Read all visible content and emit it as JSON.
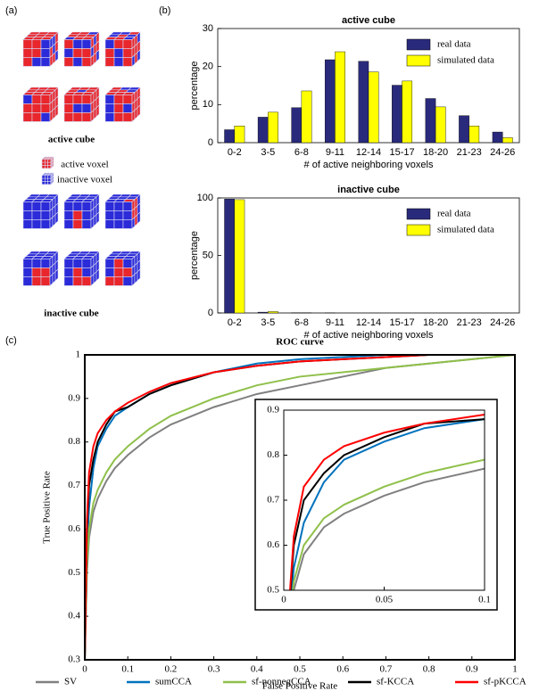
{
  "panel_labels": [
    "(a)",
    "(b)",
    "(c)"
  ],
  "cube_panel": {
    "active_title": "active cube",
    "legend": [
      "active voxel",
      "inactive voxel"
    ],
    "inactive_title": "inactive cube"
  },
  "chart_data": [
    {
      "type": "bar",
      "title": "active cube",
      "x_label": "# of active neighboring voxels",
      "y_label": "percentage",
      "categories": [
        "0-2",
        "3-5",
        "6-8",
        "9-11",
        "12-14",
        "15-17",
        "18-20",
        "21-23",
        "24-26"
      ],
      "series": [
        {
          "name": "real data",
          "color": "#2a2a7c",
          "values": [
            3.4,
            6.7,
            9.2,
            21.8,
            21.4,
            15.1,
            11.6,
            7.1,
            2.8
          ]
        },
        {
          "name": "simulated data",
          "color": "#ffff00",
          "values": [
            4.4,
            8.0,
            13.6,
            23.9,
            18.6,
            16.2,
            9.4,
            4.4,
            1.3
          ]
        }
      ],
      "ylim": [
        0,
        30
      ],
      "yticks": [
        0,
        10,
        20,
        30
      ],
      "legend": "upper right"
    },
    {
      "type": "bar",
      "title": "inactive cube",
      "x_label": "# of active neighboring voxels",
      "y_label": "percentage",
      "categories": [
        "0-2",
        "3-5",
        "6-8",
        "9-11",
        "12-14",
        "15-17",
        "18-20",
        "21-23",
        "24-26"
      ],
      "series": [
        {
          "name": "real data",
          "color": "#2a2a7c",
          "values": [
            99,
            0.7,
            0.2,
            0.1,
            0,
            0,
            0,
            0,
            0
          ]
        },
        {
          "name": "simulated data",
          "color": "#ffff00",
          "values": [
            98.5,
            1.2,
            0.2,
            0,
            0,
            0,
            0,
            0,
            0
          ]
        }
      ],
      "ylim": [
        0,
        100
      ],
      "yticks": [
        0,
        50,
        100
      ],
      "legend": "upper right"
    },
    {
      "type": "line",
      "title": "ROC curve",
      "x_label": "False Positive Rate",
      "y_label": "True Positive Rate",
      "x": [
        0,
        0.005,
        0.01,
        0.02,
        0.03,
        0.05,
        0.07,
        0.1,
        0.15,
        0.2,
        0.3,
        0.4,
        0.5,
        0.6,
        0.7,
        0.8,
        0.9,
        1
      ],
      "series": [
        {
          "name": "SV",
          "color": "#808080",
          "values": [
            0.3,
            0.5,
            0.58,
            0.64,
            0.67,
            0.71,
            0.74,
            0.77,
            0.81,
            0.84,
            0.88,
            0.91,
            0.93,
            0.95,
            0.97,
            0.98,
            0.99,
            1
          ]
        },
        {
          "name": "sumCCA",
          "color": "#0072bd",
          "values": [
            0.3,
            0.55,
            0.65,
            0.74,
            0.79,
            0.83,
            0.86,
            0.88,
            0.91,
            0.93,
            0.96,
            0.98,
            0.99,
            0.995,
            1,
            1,
            1,
            1
          ]
        },
        {
          "name": "sf-nonnegCCA",
          "color": "#8fc04a",
          "values": [
            0.3,
            0.52,
            0.6,
            0.66,
            0.69,
            0.73,
            0.76,
            0.79,
            0.83,
            0.86,
            0.9,
            0.93,
            0.95,
            0.96,
            0.97,
            0.98,
            0.99,
            1
          ]
        },
        {
          "name": "sf-KCCA",
          "color": "#000000",
          "values": [
            0.3,
            0.6,
            0.7,
            0.76,
            0.8,
            0.84,
            0.87,
            0.88,
            0.91,
            0.93,
            0.96,
            0.975,
            0.985,
            0.99,
            0.995,
            1,
            1,
            1
          ]
        },
        {
          "name": "sf-pKCCA",
          "color": "#ff0000",
          "values": [
            0.3,
            0.62,
            0.73,
            0.79,
            0.82,
            0.85,
            0.87,
            0.89,
            0.915,
            0.935,
            0.96,
            0.975,
            0.985,
            0.99,
            0.995,
            1,
            1,
            1
          ]
        }
      ],
      "xlim": [
        0,
        1
      ],
      "ylim": [
        0.3,
        1
      ],
      "xticks": [
        0,
        0.1,
        0.2,
        0.3,
        0.4,
        0.5,
        0.6,
        0.7,
        0.8,
        0.9,
        1
      ],
      "yticks": [
        0.3,
        0.4,
        0.5,
        0.6,
        0.7,
        0.8,
        0.9,
        1
      ],
      "legend": "bottom",
      "inset": {
        "xlim": [
          0,
          0.1
        ],
        "ylim": [
          0.5,
          0.9
        ],
        "xticks": [
          0,
          0.05,
          0.1
        ],
        "yticks": [
          0.5,
          0.6,
          0.7,
          0.8,
          0.9
        ]
      }
    }
  ]
}
